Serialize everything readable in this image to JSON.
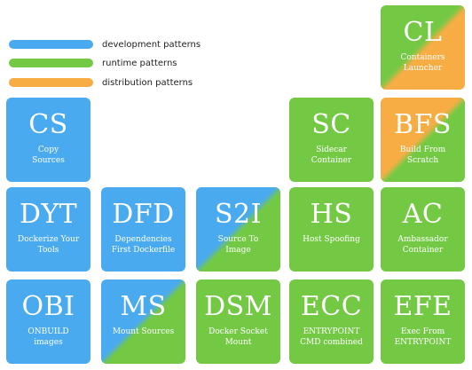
{
  "legend": [
    {
      "key": "development",
      "label": "development patterns",
      "color": "#4aaaf0"
    },
    {
      "key": "runtime",
      "label": "runtime patterns",
      "color": "#74c944"
    },
    {
      "key": "distribution",
      "label": "distribution patterns",
      "color": "#f7ad44"
    }
  ],
  "tiles": [
    {
      "id": "CL",
      "abbr": "CL",
      "name": "Containers\nLauncher",
      "categories": [
        "runtime",
        "distribution"
      ]
    },
    {
      "id": "CS",
      "abbr": "CS",
      "name": "Copy\nSources",
      "categories": [
        "development"
      ]
    },
    {
      "id": "SC",
      "abbr": "SC",
      "name": "Sidecar\nContainer",
      "categories": [
        "runtime"
      ]
    },
    {
      "id": "BFS",
      "abbr": "BFS",
      "name": "Build From\nScratch",
      "categories": [
        "distribution",
        "runtime"
      ]
    },
    {
      "id": "DYT",
      "abbr": "DYT",
      "name": "Dockerize Your\nTools",
      "categories": [
        "development"
      ]
    },
    {
      "id": "DFD",
      "abbr": "DFD",
      "name": "Dependencies\nFirst Dockerfile",
      "categories": [
        "development"
      ]
    },
    {
      "id": "S2I",
      "abbr": "S2I",
      "name": "Source To\nImage",
      "categories": [
        "development",
        "runtime"
      ]
    },
    {
      "id": "HS",
      "abbr": "HS",
      "name": "Host Spoofing",
      "categories": [
        "runtime"
      ]
    },
    {
      "id": "AC",
      "abbr": "AC",
      "name": "Ambassador\nContainer",
      "categories": [
        "runtime"
      ]
    },
    {
      "id": "OBI",
      "abbr": "OBI",
      "name": "ONBUILD\nimages",
      "categories": [
        "development"
      ]
    },
    {
      "id": "MS",
      "abbr": "MS",
      "name": "Mount Sources",
      "categories": [
        "development",
        "runtime"
      ]
    },
    {
      "id": "DSM",
      "abbr": "DSM",
      "name": "Docker Socket\nMount",
      "categories": [
        "runtime"
      ]
    },
    {
      "id": "ECC",
      "abbr": "ECC",
      "name": "ENTRYPOINT\nCMD combined",
      "categories": [
        "runtime"
      ]
    },
    {
      "id": "EFE",
      "abbr": "EFE",
      "name": "Exec From\nENTRYPOINT",
      "categories": [
        "runtime"
      ]
    }
  ]
}
